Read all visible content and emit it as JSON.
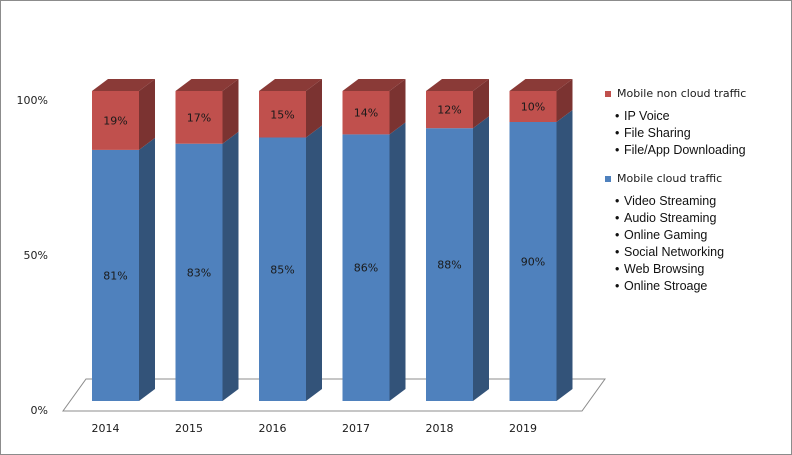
{
  "chart_data": {
    "type": "bar",
    "stacked": true,
    "categories": [
      "2014",
      "2015",
      "2016",
      "2017",
      "2018",
      "2019"
    ],
    "series": [
      {
        "name": "Mobile cloud traffic",
        "values": [
          81,
          83,
          85,
          86,
          88,
          90
        ],
        "labels": [
          "81%",
          "83%",
          "85%",
          "86%",
          "88%",
          "90%"
        ],
        "color": "#4f81bd"
      },
      {
        "name": "Mobile non cloud traffic",
        "values": [
          19,
          17,
          15,
          14,
          12,
          10
        ],
        "labels": [
          "19%",
          "17%",
          "15%",
          "14%",
          "12%",
          "10%"
        ],
        "color": "#c0504d"
      }
    ],
    "y_ticks": [
      "0%",
      "50%",
      "100%"
    ],
    "ylim": [
      0,
      100
    ],
    "grid": false,
    "legend_position": "right"
  },
  "legend": {
    "groups": [
      {
        "title": "Mobile non cloud traffic",
        "color": "#c0504d",
        "items": [
          "IP Voice",
          "File Sharing",
          "File/App Downloading"
        ]
      },
      {
        "title": "Mobile cloud traffic",
        "color": "#4f81bd",
        "items": [
          "Video Streaming",
          "Audio Streaming",
          "Online Gaming",
          "Social Networking",
          "Web Browsing",
          "Online Stroage"
        ]
      }
    ]
  }
}
